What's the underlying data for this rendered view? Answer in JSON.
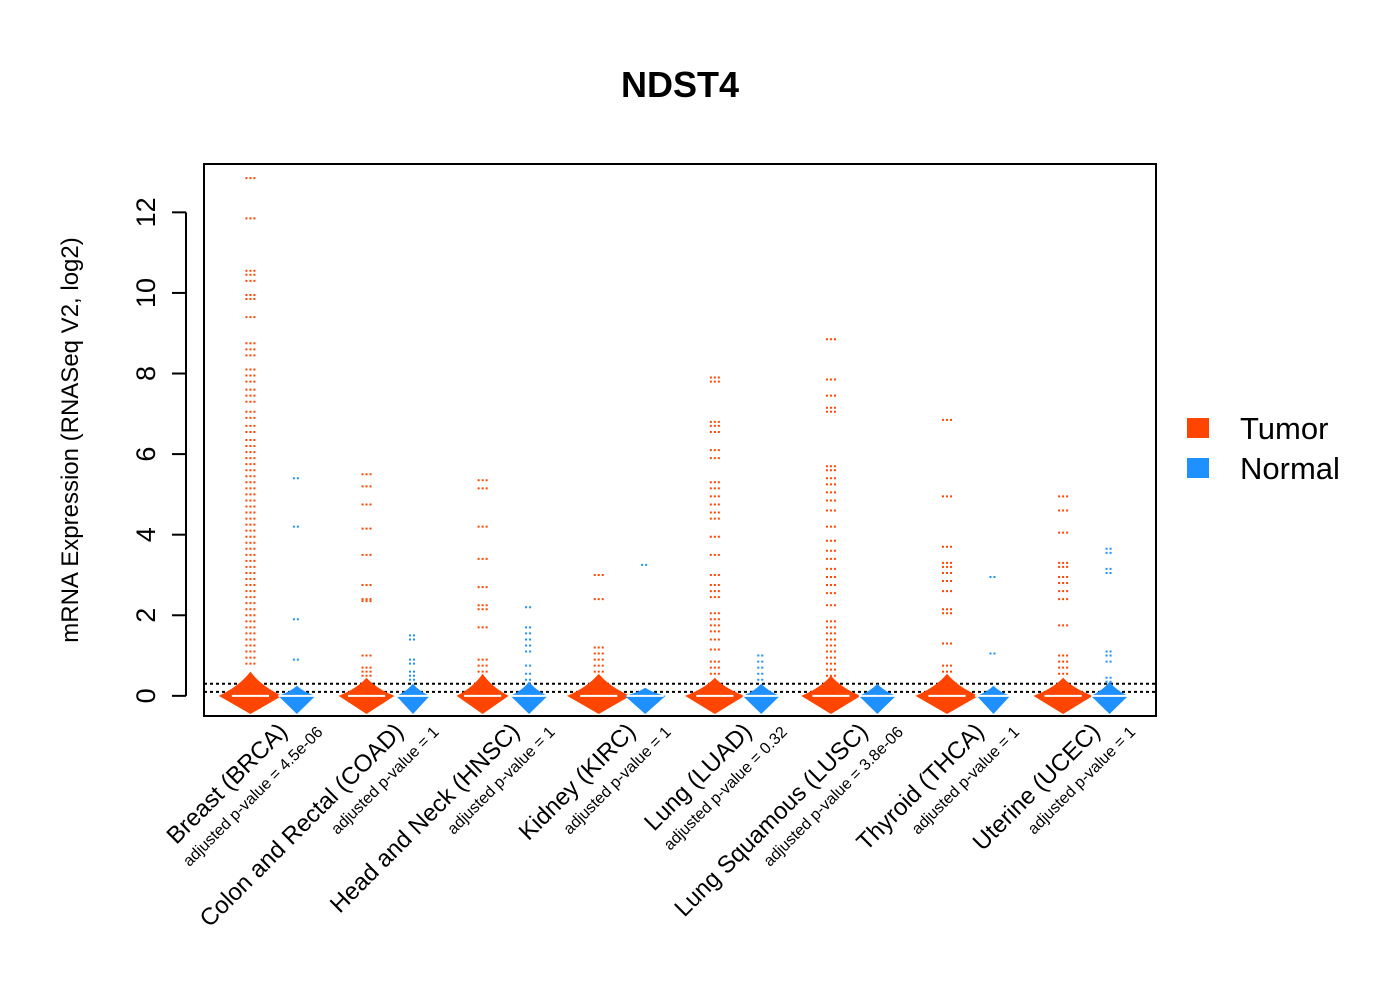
{
  "chart_data": {
    "type": "beanplot",
    "title": "NDST4",
    "ylabel": "mRNA Expression (RNASeq V2, log2)",
    "xlabel": "",
    "ylim": [
      -0.5,
      13.2
    ],
    "yticks": [
      0,
      2,
      4,
      6,
      8,
      10,
      12
    ],
    "reference_lines": [
      0.1,
      0.3
    ],
    "colors": {
      "tumor": "#ff4500",
      "normal": "#1e90ff"
    },
    "legend": [
      {
        "name": "Tumor",
        "color": "#ff4500"
      },
      {
        "name": "Normal",
        "color": "#1e90ff"
      }
    ],
    "categories": [
      {
        "label": "Breast (BRCA)",
        "pvalue": "adjusted p-value = 4.5e-06",
        "tumor_median": 0.0,
        "normal_median": 0.0,
        "tumor_points": [
          12.85,
          11.85,
          10.55,
          10.45,
          10.3,
          9.95,
          9.85,
          9.4,
          8.75,
          8.6,
          8.45,
          8.1,
          7.95,
          7.8,
          7.6,
          7.45,
          7.3,
          7.05,
          6.9,
          6.7,
          6.55,
          6.35,
          6.2,
          6.05,
          5.9,
          5.75,
          5.6,
          5.45,
          5.3,
          5.15,
          5.0,
          4.85,
          4.7,
          4.55,
          4.4,
          4.25,
          4.1,
          3.95,
          3.8,
          3.65,
          3.5,
          3.35,
          3.2,
          3.05,
          2.9,
          2.75,
          2.6,
          2.45,
          2.3,
          2.15,
          2.0,
          1.85,
          1.7,
          1.55,
          1.4,
          1.25,
          1.1,
          0.95,
          0.8
        ],
        "normal_points": [
          5.4,
          4.2,
          1.9,
          0.9
        ],
        "tumor_bean": {
          "width": 0.85,
          "top": 0.6
        },
        "normal_bean": {
          "width": 0.5,
          "top": 0.25
        }
      },
      {
        "label": "Colon and Rectal (COAD)",
        "pvalue": "adjusted p-value = 1",
        "tumor_median": 0.0,
        "normal_median": 0.0,
        "tumor_points": [
          5.5,
          5.2,
          4.75,
          4.15,
          3.5,
          2.75,
          2.4,
          2.35,
          1.0,
          0.7,
          0.6,
          0.5
        ],
        "normal_points": [
          1.5,
          1.4,
          0.9,
          0.8,
          0.6,
          0.5,
          0.4
        ],
        "tumor_bean": {
          "width": 0.75,
          "top": 0.45
        },
        "normal_bean": {
          "width": 0.45,
          "top": 0.3
        }
      },
      {
        "label": "Head and Neck (HNSC)",
        "pvalue": "adjusted p-value = 1",
        "tumor_median": 0.0,
        "normal_median": 0.0,
        "tumor_points": [
          5.35,
          5.15,
          4.2,
          3.4,
          2.7,
          2.25,
          2.15,
          1.7,
          0.9,
          0.75,
          0.6
        ],
        "normal_points": [
          2.2,
          1.7,
          1.55,
          1.4,
          1.25,
          1.1,
          0.75,
          0.55,
          0.4
        ],
        "tumor_bean": {
          "width": 0.7,
          "top": 0.55
        },
        "normal_bean": {
          "width": 0.5,
          "top": 0.35
        }
      },
      {
        "label": "Kidney (KIRC)",
        "pvalue": "adjusted p-value = 1",
        "tumor_median": 0.0,
        "normal_median": 0.0,
        "tumor_points": [
          3.0,
          2.4,
          1.2,
          1.05,
          0.9,
          0.75,
          0.6
        ],
        "normal_points": [
          3.25
        ],
        "tumor_bean": {
          "width": 0.85,
          "top": 0.55
        },
        "normal_bean": {
          "width": 0.55,
          "top": 0.2
        }
      },
      {
        "label": "Lung (LUAD)",
        "pvalue": "adjusted p-value = 0.32",
        "tumor_median": 0.0,
        "normal_median": 0.0,
        "tumor_points": [
          7.9,
          7.8,
          6.8,
          6.7,
          6.55,
          6.1,
          5.9,
          5.3,
          5.15,
          4.95,
          4.75,
          4.55,
          4.4,
          3.95,
          3.5,
          3.0,
          2.75,
          2.6,
          2.45,
          2.05,
          1.9,
          1.75,
          1.6,
          1.4,
          1.15,
          0.85,
          0.7,
          0.55
        ],
        "normal_points": [
          1.0,
          0.85,
          0.7,
          0.55,
          0.4
        ],
        "tumor_bean": {
          "width": 0.8,
          "top": 0.45
        },
        "normal_bean": {
          "width": 0.5,
          "top": 0.3
        }
      },
      {
        "label": "Lung Squamous (LUSC)",
        "pvalue": "adjusted p-value = 3.8e-06",
        "tumor_median": 0.0,
        "normal_median": 0.0,
        "tumor_points": [
          8.85,
          7.85,
          7.45,
          7.15,
          7.05,
          5.7,
          5.6,
          5.4,
          5.25,
          5.05,
          4.85,
          4.6,
          4.2,
          3.85,
          3.6,
          3.4,
          3.15,
          2.95,
          2.75,
          2.55,
          2.25,
          1.85,
          1.7,
          1.55,
          1.4,
          1.25,
          1.1,
          0.95,
          0.8,
          0.65,
          0.5
        ],
        "normal_points": [],
        "tumor_bean": {
          "width": 0.8,
          "top": 0.5
        },
        "normal_bean": {
          "width": 0.5,
          "top": 0.3
        }
      },
      {
        "label": "Thyroid (THCA)",
        "pvalue": "adjusted p-value = 1",
        "tumor_median": 0.0,
        "normal_median": 0.0,
        "tumor_points": [
          6.85,
          4.95,
          3.7,
          3.3,
          3.2,
          3.05,
          2.85,
          2.6,
          2.15,
          2.05,
          1.3,
          0.75,
          0.6
        ],
        "normal_points": [
          2.95,
          1.05
        ],
        "tumor_bean": {
          "width": 0.85,
          "top": 0.55
        },
        "normal_bean": {
          "width": 0.45,
          "top": 0.25
        }
      },
      {
        "label": "Uterine (UCEC)",
        "pvalue": "adjusted p-value = 1",
        "tumor_median": 0.0,
        "normal_median": 0.0,
        "tumor_points": [
          4.95,
          4.6,
          4.05,
          3.3,
          3.2,
          2.95,
          2.8,
          2.6,
          2.4,
          1.75,
          1.0,
          0.85,
          0.7,
          0.55
        ],
        "normal_points": [
          3.65,
          3.55,
          3.15,
          3.05,
          1.1,
          1.0,
          0.85,
          0.45,
          0.35
        ],
        "tumor_bean": {
          "width": 0.8,
          "top": 0.45
        },
        "normal_bean": {
          "width": 0.5,
          "top": 0.35
        }
      }
    ]
  }
}
